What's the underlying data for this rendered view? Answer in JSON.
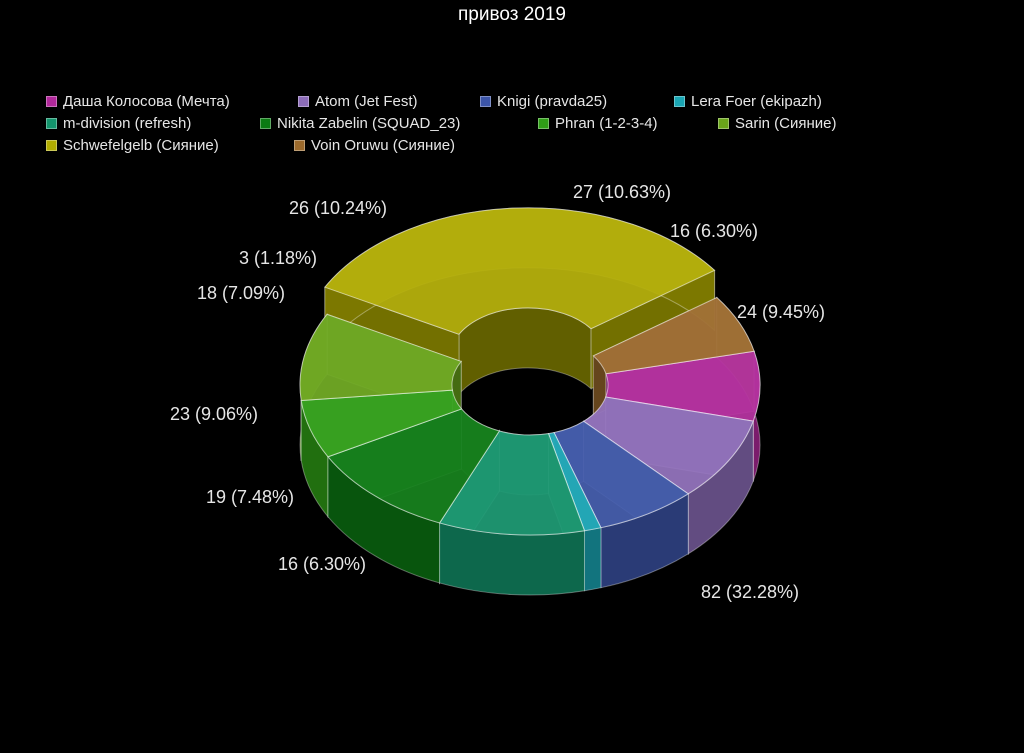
{
  "chart_data": {
    "type": "pie",
    "title": "привоз 2019",
    "legend_position": "top",
    "slices": [
      {
        "name": "Даша Колосова (Мечта)",
        "value": 19,
        "label": "19 (7.48%)",
        "color": "#b0289a"
      },
      {
        "name": "Atom (Jet Fest)",
        "value": 23,
        "label": "23 (9.06%)",
        "color": "#8c6cb8"
      },
      {
        "name": "Knigi (pravda25)",
        "value": 18,
        "label": "18 (7.09%)",
        "color": "#3c55a8"
      },
      {
        "name": "Lera Foer (ekipazh)",
        "value": 3,
        "label": "3 (1.18%)",
        "color": "#1aa6b4"
      },
      {
        "name": "m-division (refresh)",
        "value": 26,
        "label": "26 (10.24%)",
        "color": "#13946c"
      },
      {
        "name": "Nikita Zabelin (SQUAD_23)",
        "value": 27,
        "label": "27 (10.63%)",
        "color": "#0b7a12"
      },
      {
        "name": "Phran (1-2-3-4)",
        "value": 16,
        "label": "16 (6.30%)",
        "color": "#2f9e16"
      },
      {
        "name": "Sarin (Сияние)",
        "value": 24,
        "label": "24 (9.45%)",
        "color": "#6aa51a"
      },
      {
        "name": "Schwefelgelb (Сияние)",
        "value": 82,
        "label": "82 (32.28%)",
        "color": "#b1ac00"
      },
      {
        "name": "Voin Oruwu (Сияние)",
        "value": 16,
        "label": "16 (6.30%)",
        "color": "#9c6a2c"
      }
    ]
  }
}
